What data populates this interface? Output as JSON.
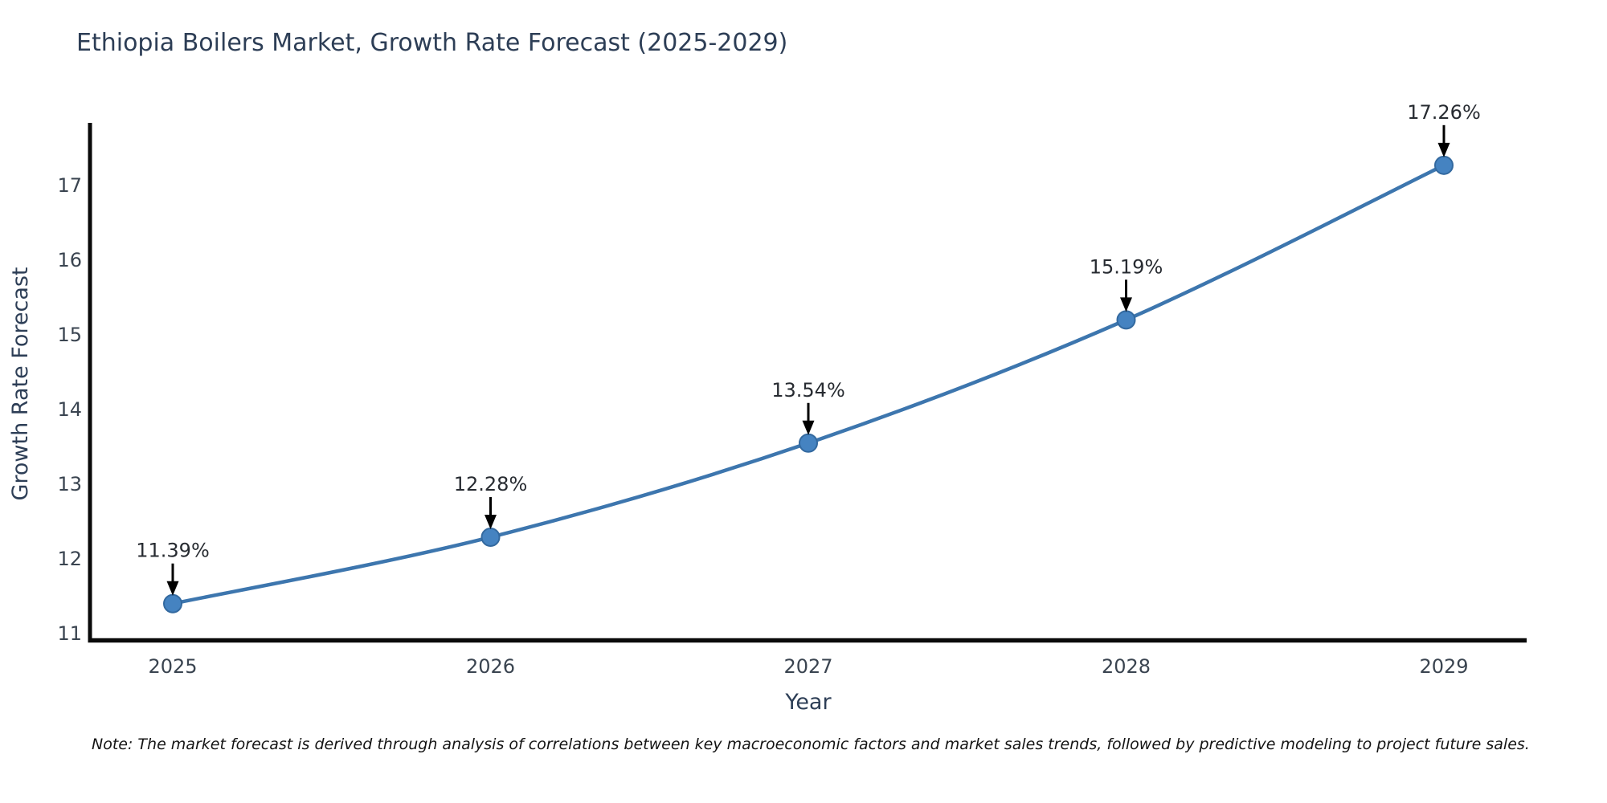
{
  "title": "Ethiopia Boilers Market, Growth Rate Forecast (2025-2029)",
  "footnote": "Note: The market forecast is derived through analysis of correlations between key macroeconomic factors and market sales trends, followed by predictive modeling to project future sales.",
  "chart_data": {
    "type": "line",
    "title": "Ethiopia Boilers Market, Growth Rate Forecast (2025-2029)",
    "xlabel": "Year",
    "ylabel": "Growth Rate Forecast",
    "x": [
      2025,
      2026,
      2027,
      2028,
      2029
    ],
    "values": [
      11.39,
      12.28,
      13.54,
      15.19,
      17.26
    ],
    "point_labels": [
      "11.39%",
      "12.28%",
      "13.54%",
      "15.19%",
      "17.26%"
    ],
    "xticks": [
      "2025",
      "2026",
      "2027",
      "2028",
      "2029"
    ],
    "yticks": [
      11,
      12,
      13,
      14,
      15,
      16,
      17
    ],
    "ylim": [
      10.87,
      17.8
    ],
    "grid": false,
    "legend": "none",
    "line_color": "#3d76ae",
    "marker_color": "#4583c1",
    "marker_edge_color": "#33699f",
    "arrow_color": "#000000",
    "spine_color": "#0a0a0a"
  }
}
